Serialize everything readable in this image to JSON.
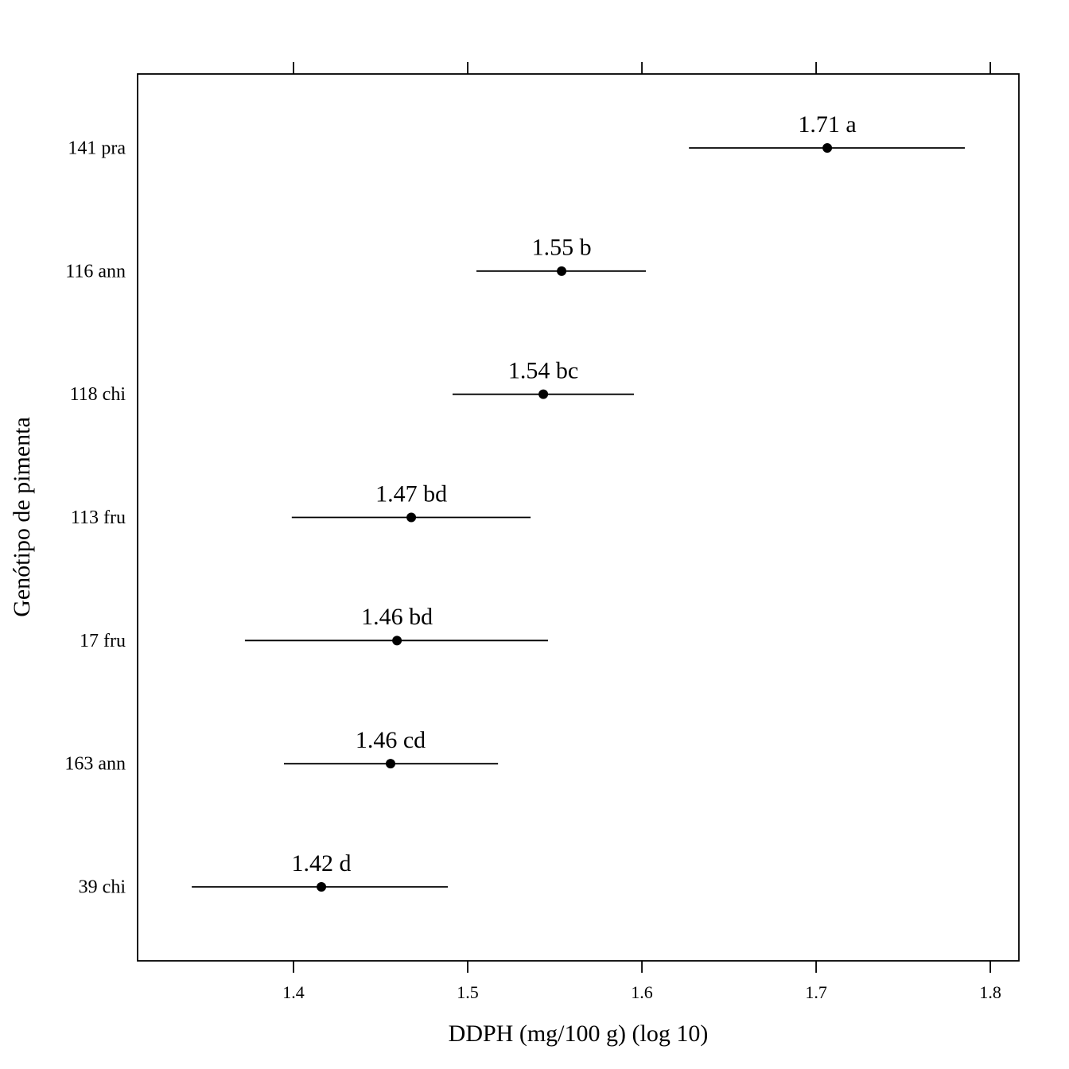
{
  "chart_data": {
    "type": "dotinterval",
    "x_label": "DDPH (mg/100 g) (log 10)",
    "y_label": "Genótipo de pimenta",
    "categories": [
      "141 pra",
      "116 ann",
      "118 chi",
      "113 fru",
      "17 fru",
      "163 ann",
      "39 chi"
    ],
    "values": [
      1.7064,
      1.5539,
      1.5434,
      1.4676,
      1.4594,
      1.4557,
      1.416
    ],
    "lower": [
      1.627,
      1.505,
      1.4913,
      1.399,
      1.3721,
      1.3945,
      1.3416
    ],
    "upper": [
      1.7854,
      1.6023,
      1.5954,
      1.5361,
      1.5461,
      1.5174,
      1.4886
    ],
    "value_labels": [
      "1.71 a",
      "1.55 b",
      "1.54 bc",
      "1.47 bd",
      "1.46 bd",
      "1.46 cd",
      "1.42 d"
    ],
    "color": "#000000",
    "xlim": [
      1.3105,
      1.8164
    ],
    "xticks": [
      1.4,
      1.5,
      1.6,
      1.7,
      1.8
    ]
  }
}
